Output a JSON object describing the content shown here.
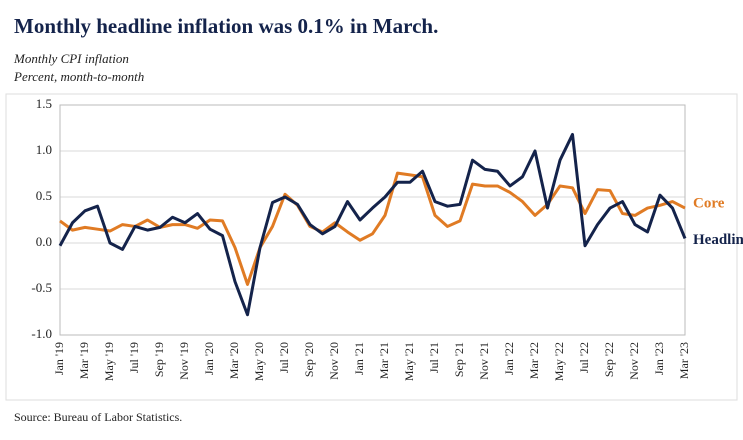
{
  "chart_data": {
    "type": "line",
    "title": "Monthly headline inflation was 0.1% in March.",
    "subtitle": [
      "Monthly CPI inflation",
      "Percent, month-to-month"
    ],
    "source": "Source: Bureau of Labor Statistics.",
    "categories": [
      "Jan '19",
      null,
      "Mar '19",
      null,
      "May '19",
      null,
      "Jul '19",
      null,
      "Sep '19",
      null,
      "Nov '19",
      null,
      "Jan '20",
      null,
      "Mar '20",
      null,
      "May '20",
      null,
      "Jul '20",
      null,
      "Sep '20",
      null,
      "Nov '20",
      null,
      "Jan '21",
      null,
      "Mar '21",
      null,
      "May '21",
      null,
      "Jul '21",
      null,
      "Sep '21",
      null,
      "Nov '21",
      null,
      "Jan '22",
      null,
      "Mar '22",
      null,
      "May '22",
      null,
      "Jul '22",
      null,
      "Sep '22",
      null,
      "Nov '22",
      null,
      "Jan '23",
      null,
      "Mar '23"
    ],
    "series": [
      {
        "name": "Core",
        "color": "#e07b24",
        "values": [
          0.24,
          0.14,
          0.17,
          0.15,
          0.13,
          0.2,
          0.18,
          0.25,
          0.17,
          0.2,
          0.2,
          0.16,
          0.25,
          0.24,
          -0.05,
          -0.45,
          -0.05,
          0.18,
          0.53,
          0.41,
          0.18,
          0.12,
          0.22,
          0.12,
          0.03,
          0.1,
          0.3,
          0.76,
          0.74,
          0.72,
          0.3,
          0.18,
          0.24,
          0.64,
          0.62,
          0.62,
          0.55,
          0.45,
          0.3,
          0.42,
          0.62,
          0.6,
          0.32,
          0.58,
          0.57,
          0.32,
          0.3,
          0.38,
          0.41,
          0.45,
          0.38
        ]
      },
      {
        "name": "Headline",
        "color": "#14234b",
        "values": [
          -0.03,
          0.22,
          0.35,
          0.4,
          0.0,
          -0.07,
          0.18,
          0.14,
          0.17,
          0.28,
          0.22,
          0.32,
          0.15,
          0.08,
          -0.42,
          -0.78,
          -0.05,
          0.44,
          0.5,
          0.42,
          0.2,
          0.1,
          0.18,
          0.45,
          0.25,
          0.38,
          0.5,
          0.66,
          0.66,
          0.78,
          0.45,
          0.4,
          0.42,
          0.9,
          0.8,
          0.78,
          0.62,
          0.72,
          1.0,
          0.38,
          0.9,
          1.18,
          -0.03,
          0.2,
          0.38,
          0.45,
          0.2,
          0.12,
          0.52,
          0.38,
          0.05
        ]
      }
    ],
    "ylim": [
      -1.0,
      1.5
    ],
    "yticks": [
      {
        "value": -1.0,
        "label": "-1.0"
      },
      -0.5,
      {
        "value": 0,
        "label": "0.0"
      },
      0.5,
      {
        "value": 1.0,
        "label": "1.0"
      },
      1.5
    ],
    "grid": true
  }
}
